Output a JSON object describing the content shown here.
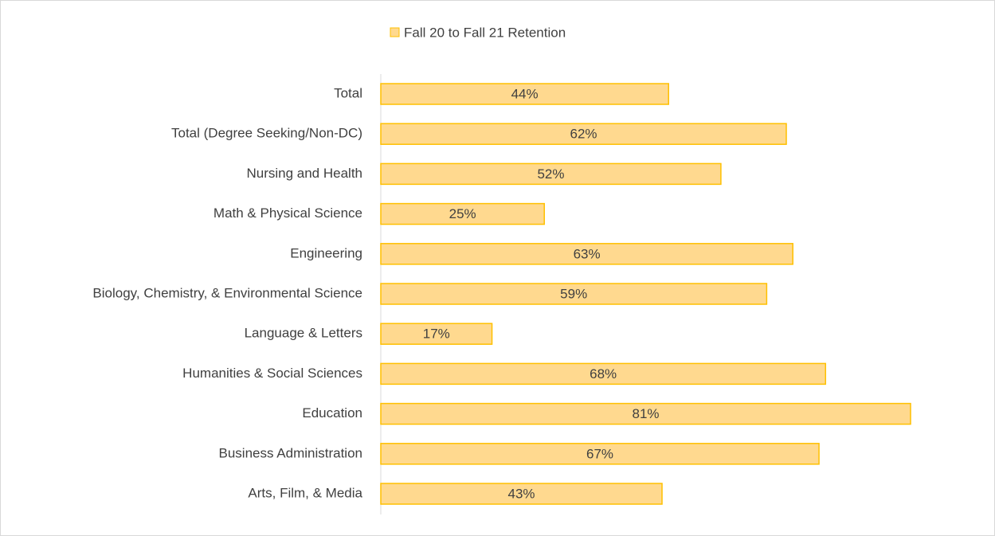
{
  "chart_data": {
    "type": "bar",
    "orientation": "horizontal",
    "categories": [
      "Total",
      "Total (Degree Seeking/Non-DC)",
      "Nursing and Health",
      "Math & Physical Science",
      "Engineering",
      "Biology, Chemistry, & Environmental Science",
      "Language & Letters",
      "Humanities & Social Sciences",
      "Education",
      "Business Administration",
      "Arts, Film, & Media"
    ],
    "series": [
      {
        "name": "Fall 20 to Fall 21 Retention",
        "color": "#ffd98f",
        "edge_color": "#ffc000",
        "values": [
          44,
          62,
          52,
          25,
          63,
          59,
          17,
          68,
          81,
          67,
          43
        ],
        "value_labels": [
          "44%",
          "62%",
          "52%",
          "25%",
          "63%",
          "59%",
          "17%",
          "68%",
          "81%",
          "67%",
          "43%"
        ]
      }
    ],
    "legend": "top"
  }
}
